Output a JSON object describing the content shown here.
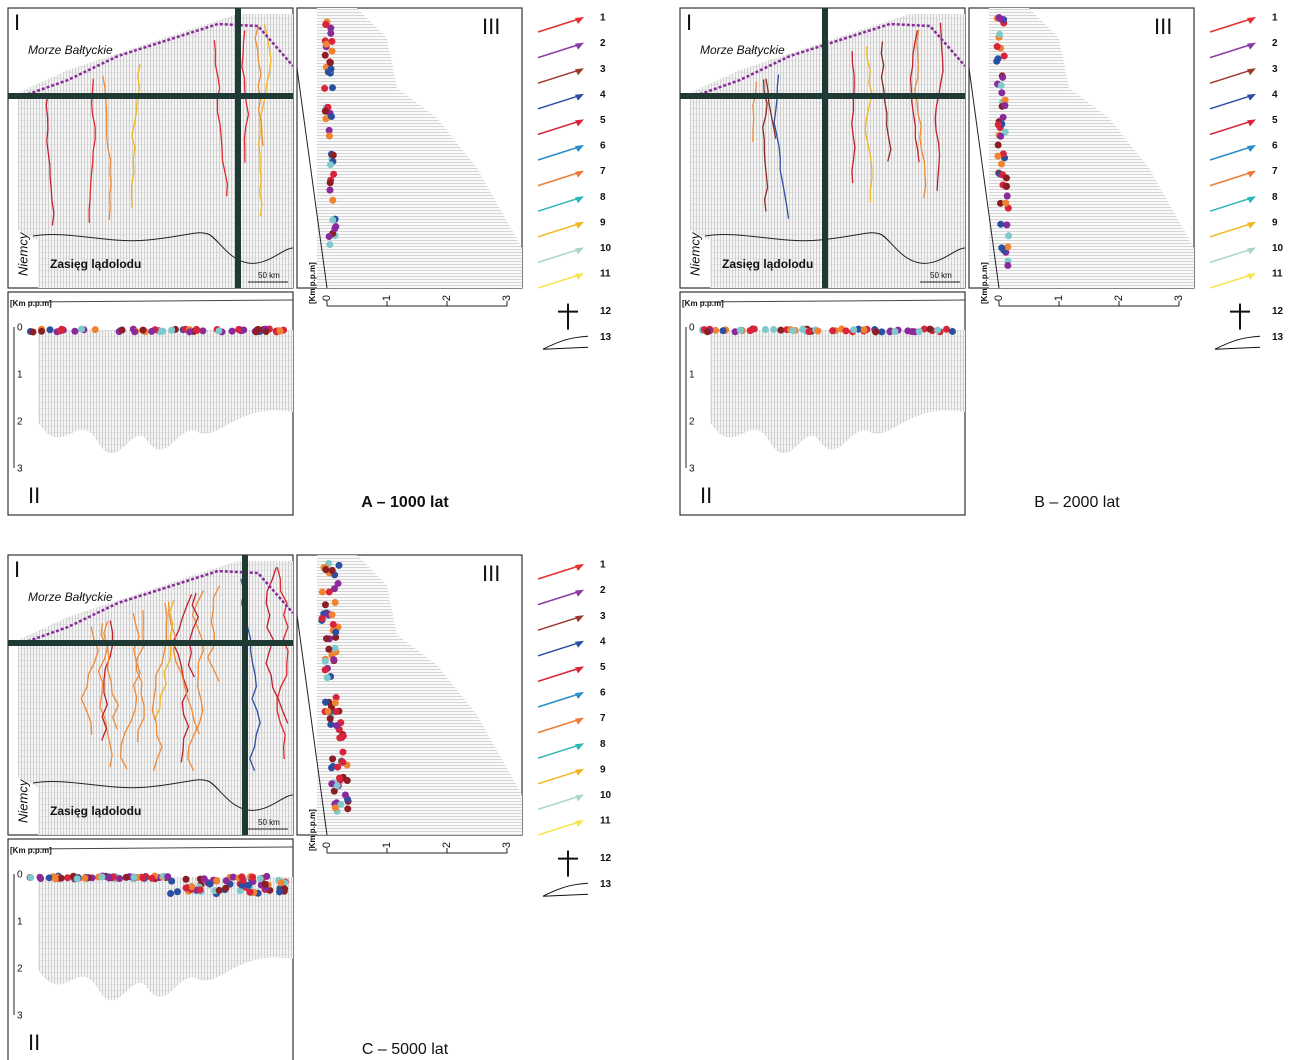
{
  "panels": [
    {
      "caption": "A – 1000 lat",
      "bold": true
    },
    {
      "caption": "B – 2000 lat",
      "bold": false
    },
    {
      "caption": "C – 5000 lat",
      "bold": false
    }
  ],
  "sections": {
    "map": "I",
    "cross_section": "II",
    "profile": "III"
  },
  "map_labels": {
    "sea": "Morze Bałtyckie",
    "country": "Niemcy",
    "ice_limit": "Zasięg lądolodu",
    "scale": "50 km"
  },
  "depth_axis": {
    "label": "[Km p.p.m]",
    "ticks": [
      0,
      1,
      2,
      3
    ]
  },
  "legend": [
    {
      "label": "1",
      "color": "#e5302c"
    },
    {
      "label": "2",
      "color": "#8a3aa6"
    },
    {
      "label": "3",
      "color": "#9b3a2e"
    },
    {
      "label": "4",
      "color": "#2a4fa0"
    },
    {
      "label": "5",
      "color": "#d8233a"
    },
    {
      "label": "6",
      "color": "#2a8fc8"
    },
    {
      "label": "7",
      "color": "#f07a3a"
    },
    {
      "label": "8",
      "color": "#2bb5b5"
    },
    {
      "label": "9",
      "color": "#f2b51e"
    },
    {
      "label": "10",
      "color": "#a8d8cc"
    },
    {
      "label": "11",
      "color": "#f4e64a"
    },
    {
      "label": "12"
    },
    {
      "label": "13"
    }
  ]
}
